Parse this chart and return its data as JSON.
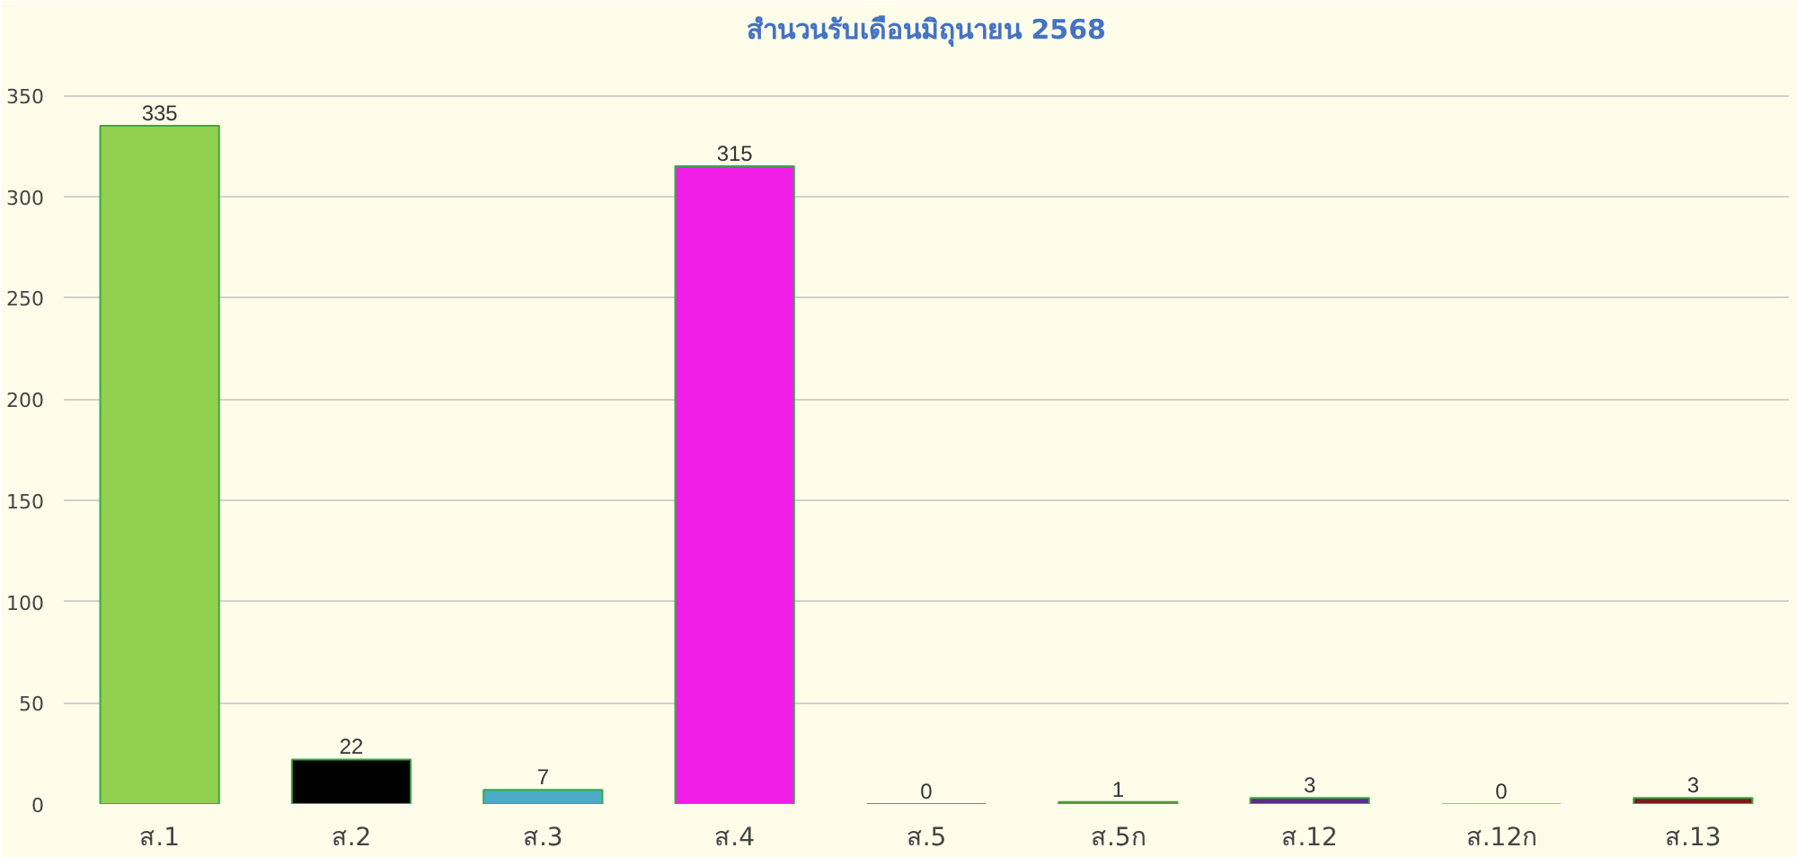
{
  "chart_data": {
    "type": "bar",
    "title": "สำนวนรับเดือนมิถุนายน 2568",
    "categories": [
      "ส.1",
      "ส.2",
      "ส.3",
      "ส.4",
      "ส.5",
      "ส.5ก",
      "ส.12",
      "ส.12ก",
      "ส.13"
    ],
    "values": [
      335,
      22,
      7,
      315,
      0,
      1,
      3,
      0,
      3
    ],
    "colors": [
      "#92d050",
      "#000000",
      "#4bacc6",
      "#f01ee6",
      "#808080",
      "#c55a11",
      "#5b2c8a",
      "#c8c800",
      "#7b1a1a"
    ],
    "ylim": [
      0,
      370
    ],
    "yticks": [
      0,
      50,
      100,
      150,
      200,
      250,
      300,
      350
    ],
    "grid": "y",
    "data_labels": true
  }
}
